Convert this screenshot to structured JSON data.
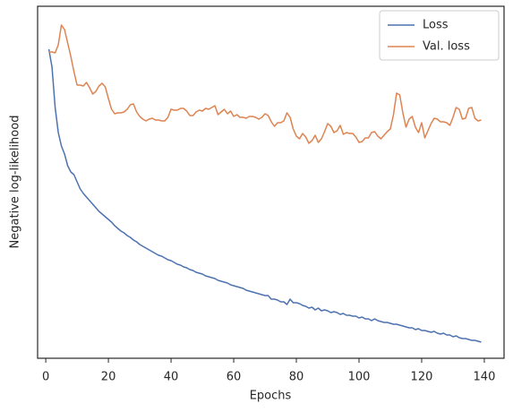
{
  "chart_data": {
    "type": "line",
    "xlabel": "Epochs",
    "ylabel": "Negative log-likelihood",
    "x": [
      1,
      2,
      3,
      4,
      5,
      6,
      7,
      8,
      9,
      10,
      11,
      12,
      13,
      14,
      15,
      16,
      17,
      18,
      19,
      20,
      21,
      22,
      23,
      24,
      25,
      26,
      27,
      28,
      29,
      30,
      31,
      32,
      33,
      34,
      35,
      36,
      37,
      38,
      39,
      40,
      41,
      42,
      43,
      44,
      45,
      46,
      47,
      48,
      49,
      50,
      51,
      52,
      53,
      54,
      55,
      56,
      57,
      58,
      59,
      60,
      61,
      62,
      63,
      64,
      65,
      66,
      67,
      68,
      69,
      70,
      71,
      72,
      73,
      74,
      75,
      76,
      77,
      78,
      79,
      80,
      81,
      82,
      83,
      84,
      85,
      86,
      87,
      88,
      89,
      90,
      91,
      92,
      93,
      94,
      95,
      96,
      97,
      98,
      99,
      100,
      101,
      102,
      103,
      104,
      105,
      106,
      107,
      108,
      109,
      110,
      111,
      112,
      113,
      114,
      115,
      116,
      117,
      118,
      119,
      120,
      121,
      122,
      123,
      124,
      125,
      126,
      127,
      128,
      129,
      130,
      131,
      132,
      133,
      134,
      135,
      136,
      137,
      138,
      139
    ],
    "series": [
      {
        "name": "Loss",
        "color": "#4c72b0",
        "values": [
          345,
          325,
          280,
          252,
          237,
          228,
          215,
          208,
          205,
          197,
          189,
          184,
          180,
          176,
          172,
          168,
          164,
          161,
          158,
          155,
          152,
          148,
          145,
          142,
          140,
          137,
          135,
          132,
          130,
          127,
          125,
          123,
          121,
          119,
          117,
          115,
          114,
          112,
          110,
          109,
          107,
          105,
          104,
          102,
          101,
          99,
          98,
          96,
          95,
          94,
          92,
          91,
          90,
          89,
          87,
          86,
          85,
          84,
          82,
          81,
          80,
          79,
          78,
          76,
          75,
          74,
          73,
          72,
          71,
          70,
          70,
          66,
          66,
          65,
          63,
          63,
          60,
          66,
          62,
          62,
          61,
          59,
          58,
          56,
          57,
          54,
          56,
          53,
          54,
          53,
          51,
          52,
          51,
          49,
          50,
          48,
          48,
          47,
          47,
          45,
          46,
          44,
          44,
          42,
          44,
          42,
          41,
          40,
          40,
          39,
          38,
          38,
          37,
          36,
          35,
          34,
          34,
          32,
          33,
          31,
          31,
          30,
          29,
          30,
          28,
          27,
          28,
          26,
          26,
          24,
          25,
          23,
          22,
          22,
          21,
          20,
          20,
          19,
          18
        ]
      },
      {
        "name": "Val. loss",
        "color": "#dd8452",
        "values": [
          342,
          342,
          341,
          350,
          372,
          367,
          352,
          337,
          320,
          305,
          305,
          304,
          308,
          302,
          295,
          298,
          304,
          307,
          303,
          290,
          278,
          273,
          274,
          274,
          275,
          278,
          283,
          284,
          275,
          270,
          267,
          265,
          267,
          268,
          266,
          266,
          265,
          265,
          269,
          278,
          277,
          277,
          279,
          279,
          276,
          271,
          271,
          275,
          277,
          276,
          279,
          278,
          280,
          282,
          272,
          275,
          278,
          273,
          276,
          270,
          272,
          269,
          269,
          268,
          270,
          270,
          269,
          267,
          269,
          273,
          271,
          264,
          259,
          263,
          263,
          265,
          274,
          269,
          256,
          248,
          245,
          251,
          247,
          240,
          243,
          249,
          241,
          245,
          253,
          262,
          259,
          252,
          254,
          260,
          250,
          252,
          251,
          251,
          247,
          241,
          242,
          246,
          246,
          252,
          253,
          248,
          245,
          249,
          253,
          256,
          272,
          296,
          294,
          274,
          258,
          267,
          270,
          258,
          252,
          263,
          246,
          254,
          262,
          268,
          267,
          264,
          264,
          263,
          260,
          269,
          280,
          278,
          267,
          268,
          279,
          280,
          268,
          265,
          266
        ]
      }
    ],
    "xlim": [
      -2.6,
      146.3
    ],
    "xticks": [
      0,
      20,
      40,
      60,
      80,
      100,
      120,
      140
    ],
    "ylim": [
      0,
      393
    ],
    "legend": "upper right"
  }
}
